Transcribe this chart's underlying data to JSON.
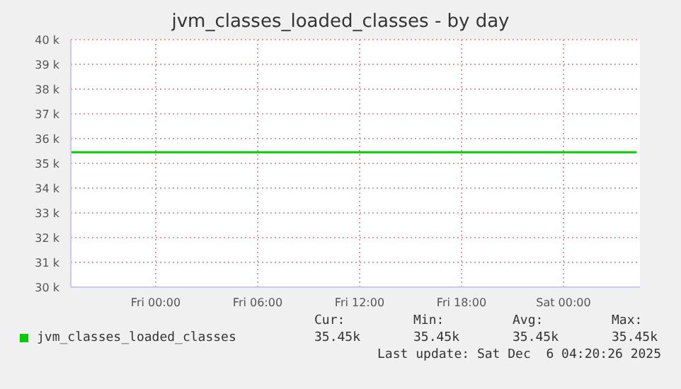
{
  "chart_data": {
    "type": "line",
    "title": "jvm_classes_loaded_classes - by day",
    "x": [
      "2025-12-04T19:00",
      "2025-12-06T04:18"
    ],
    "series": [
      {
        "name": "jvm_classes_loaded_classes",
        "color": "#00cc00",
        "values": [
          35450,
          35450
        ]
      }
    ],
    "xlim": [
      "2025-12-04T19:00",
      "2025-12-06T04:30"
    ],
    "xticks": [
      {
        "value": "2025-12-05T00:00",
        "label": "Fri 00:00"
      },
      {
        "value": "2025-12-05T06:00",
        "label": "Fri 06:00"
      },
      {
        "value": "2025-12-05T12:00",
        "label": "Fri 12:00"
      },
      {
        "value": "2025-12-05T18:00",
        "label": "Fri 18:00"
      },
      {
        "value": "2025-12-06T00:00",
        "label": "Sat 00:00"
      }
    ],
    "ylim": [
      30000,
      40000
    ],
    "yticks": [
      {
        "value": 30000,
        "label": "30 k"
      },
      {
        "value": 31000,
        "label": "31 k"
      },
      {
        "value": 32000,
        "label": "32 k"
      },
      {
        "value": 33000,
        "label": "33 k"
      },
      {
        "value": 34000,
        "label": "34 k"
      },
      {
        "value": 35000,
        "label": "35 k"
      },
      {
        "value": 36000,
        "label": "36 k"
      },
      {
        "value": 37000,
        "label": "37 k"
      },
      {
        "value": 38000,
        "label": "38 k"
      },
      {
        "value": 39000,
        "label": "39 k"
      },
      {
        "value": 40000,
        "label": "40 k"
      }
    ],
    "grid": true,
    "legend": "bottom left",
    "annotations": [
      "Cur:",
      "Min:",
      "Avg:",
      "Max:",
      "35.45k",
      "35.45k",
      "35.45k",
      "35.45k",
      "Last update: Sat Dec  6 04:20:26 2025"
    ]
  }
}
